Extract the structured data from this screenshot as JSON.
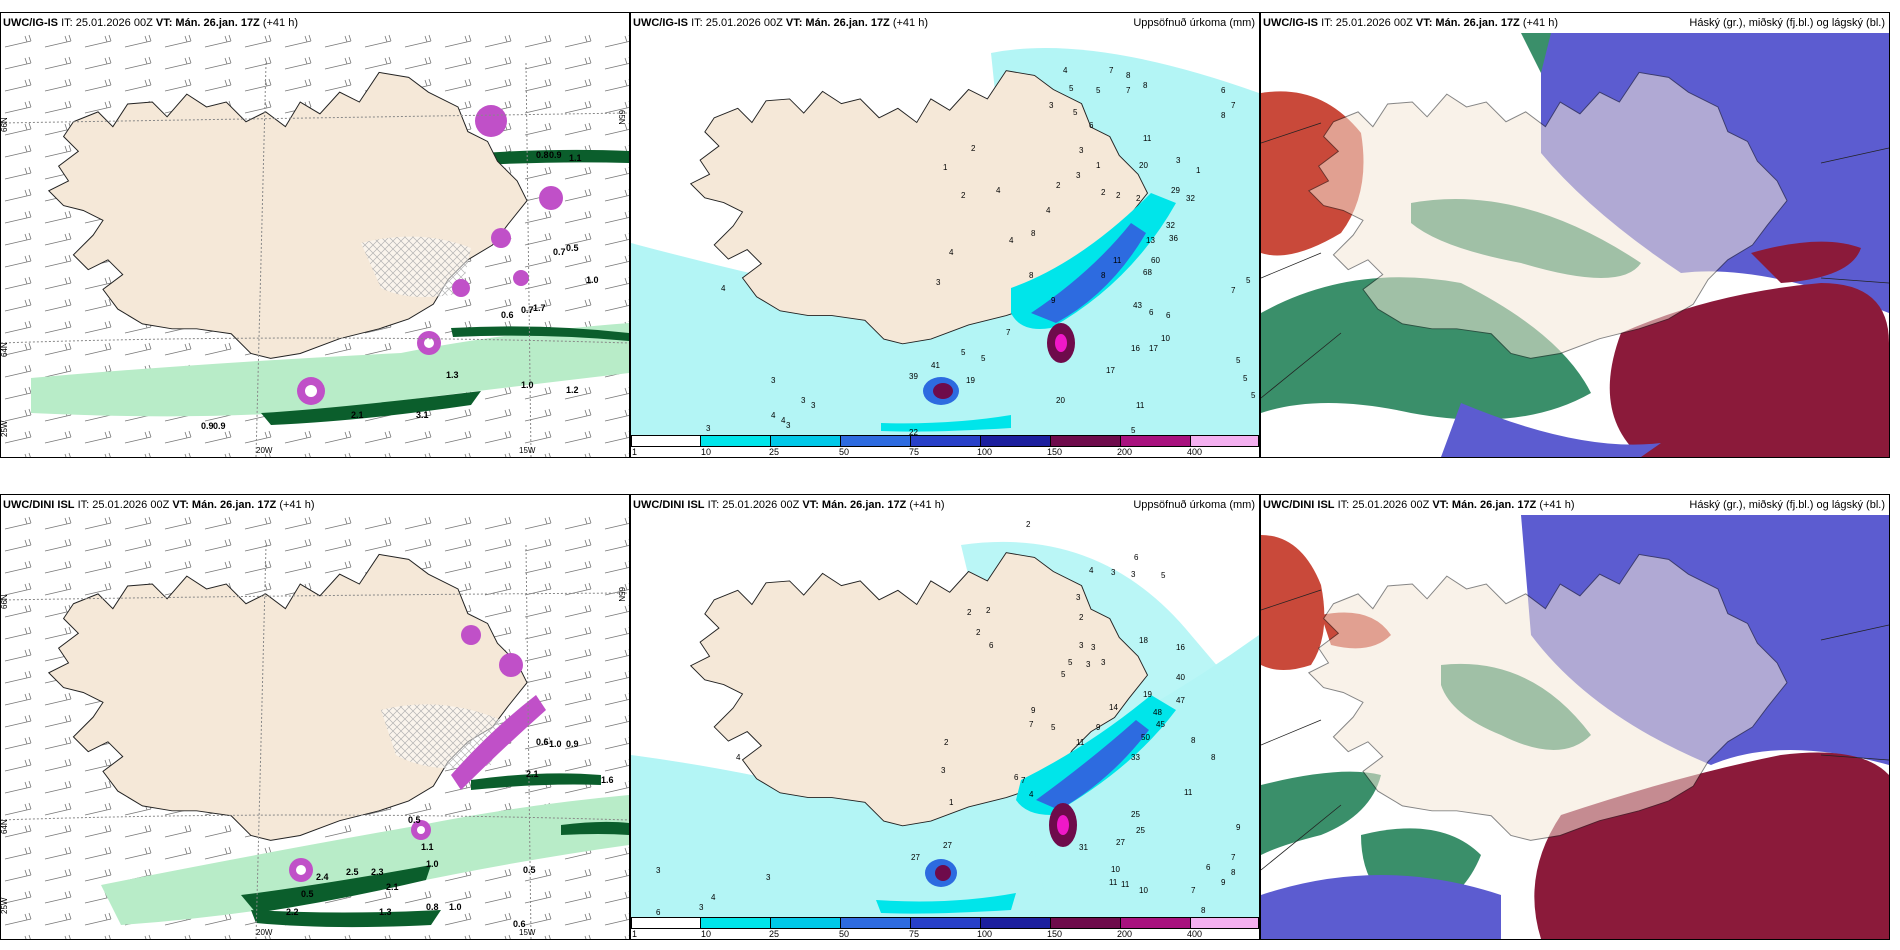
{
  "colors": {
    "land": "#f5e8d8",
    "sea_light": "#b3f5f5",
    "sea_cyan": "#00e5ea",
    "blue": "#2d5bd8",
    "navy": "#1c1f9e",
    "maroon": "#6e0b4b",
    "purple": "#a8117e",
    "magenta": "#f018c8",
    "pink": "#f4b0f0",
    "green_light": "#b8ecc8",
    "green_dark": "#0b5e2c",
    "cloud_high": "#3a8f6a",
    "cloud_mid": "#5c5cd0",
    "cloud_low": "#8b1a3a",
    "cloud_red": "#c9493a"
  },
  "panels": [
    {
      "header": {
        "model": "UWC/IG-IS",
        "it": "IT: 25.01.2026 00Z",
        "vt": "VT: Mán. 26.jan. 17Z",
        "lead": "(+41 h)",
        "right": ""
      },
      "axis_labels": {
        "lat66": "66N",
        "lat64": "64N",
        "lat65": "65N",
        "lon20": "20W",
        "lon15": "15W",
        "lon25": "25W"
      },
      "values": [
        "0.8",
        "0.9",
        "1.1",
        "0.5",
        "0.7",
        "1.0",
        "0.6",
        "0.7",
        "1.7",
        "1.3",
        "1.0",
        "1.2",
        "0.9",
        "0.9",
        "2.1",
        "3.1"
      ]
    },
    {
      "header": {
        "model": "UWC/IG-IS",
        "it": "IT: 25.01.2026 00Z",
        "vt": "VT: Mán. 26.jan. 17Z",
        "lead": "(+41 h)",
        "right": "Uppsöfnuð úrkoma (mm)"
      },
      "station_values": [
        "4",
        "7",
        "8",
        "5",
        "7",
        "8",
        "5",
        "3",
        "5",
        "6",
        "11",
        "3",
        "1",
        "2",
        "3",
        "1",
        "2",
        "4",
        "3",
        "2",
        "2",
        "4",
        "2",
        "20",
        "2",
        "1",
        "29",
        "32",
        "32",
        "36",
        "13",
        "60",
        "68",
        "43",
        "6",
        "6",
        "11",
        "8",
        "4",
        "8",
        "9",
        "8",
        "7",
        "4",
        "3",
        "5",
        "5",
        "10",
        "16",
        "17",
        "17",
        "5",
        "5",
        "5",
        "7",
        "5",
        "7",
        "6",
        "8",
        "4",
        "3",
        "3",
        "4",
        "4",
        "3",
        "39",
        "41",
        "19",
        "22",
        "20",
        "11",
        "5",
        "3",
        "3"
      ]
    },
    {
      "header": {
        "model": "UWC/IG-IS",
        "it": "IT: 25.01.2026 00Z",
        "vt": "VT: Mán. 26.jan. 17Z",
        "lead": "(+41 h)",
        "right": "Háský (gr.), miðský (fj.bl.) og lágský (bl.)"
      }
    },
    {
      "header": {
        "model": "UWC/DINI ISL",
        "it": "IT: 25.01.2026 00Z",
        "vt": "VT: Mán. 26.jan. 17Z",
        "lead": "(+41 h)",
        "right": ""
      },
      "axis_labels": {
        "lat66": "66N",
        "lat64": "64N",
        "lat65": "65N",
        "lon20": "20W",
        "lon15": "15W",
        "lon25": "25W"
      },
      "values": [
        "0.6",
        "1.0",
        "0.9",
        "2.1",
        "1.1",
        "1.6",
        "1.0",
        "0.5",
        "2.4",
        "2.5",
        "2.3",
        "2.1",
        "1.3",
        "0.8",
        "1.0",
        "0.6",
        "2.2",
        "0.5",
        "0.5"
      ]
    },
    {
      "header": {
        "model": "UWC/DINI ISL",
        "it": "IT: 25.01.2026 00Z",
        "vt": "VT: Mán. 26.jan. 17Z",
        "lead": "(+41 h)",
        "right": "Uppsöfnuð úrkoma (mm)"
      },
      "station_values": [
        "2",
        "6",
        "5",
        "4",
        "3",
        "3",
        "2",
        "2",
        "3",
        "2",
        "6",
        "2",
        "3",
        "3",
        "3",
        "3",
        "5",
        "5",
        "18",
        "16",
        "40",
        "47",
        "19",
        "48",
        "45",
        "14",
        "50",
        "33",
        "9",
        "8",
        "8",
        "11",
        "9",
        "11",
        "5",
        "7",
        "6",
        "4",
        "2",
        "3",
        "1",
        "9",
        "10",
        "7",
        "27",
        "27",
        "25",
        "31",
        "27",
        "25",
        "11",
        "11",
        "10",
        "7",
        "6",
        "7",
        "8",
        "9",
        "8",
        "4",
        "4",
        "3",
        "3",
        "6",
        "3"
      ]
    },
    {
      "header": {
        "model": "UWC/DINI ISL",
        "it": "IT: 25.01.2026 00Z",
        "vt": "VT: Mán. 26.jan. 17Z",
        "lead": "(+41 h)",
        "right": "Háský (gr.), miðský (fj.bl.) og lágský (bl.)"
      }
    }
  ],
  "legend": {
    "ticks": [
      "1",
      "10",
      "25",
      "50",
      "75",
      "100",
      "150",
      "200",
      "400"
    ],
    "colors": [
      "#ffffff",
      "#00e5ea",
      "#00c8e8",
      "#2d6be0",
      "#2840c8",
      "#1c1f9e",
      "#6e0b4b",
      "#a8117e",
      "#f018c8",
      "#f4b0f0"
    ]
  }
}
